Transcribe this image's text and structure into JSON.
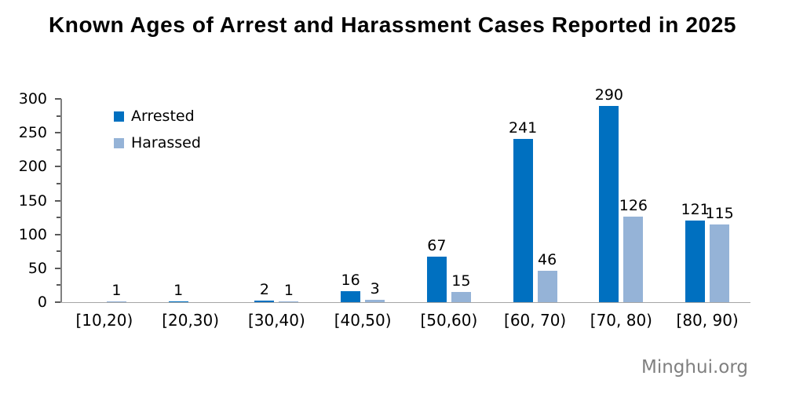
{
  "title": "Known Ages of Arrest and Harassment Cases Reported in 2025",
  "watermark": "Minghui.org",
  "colors": {
    "arrested": "#0070C0",
    "harassed": "#95B3D7",
    "axis_line": "#808080",
    "baseline": "#A6A6A6",
    "tick": "#595959",
    "text": "#000000",
    "watermark": "#808080"
  },
  "legend": [
    {
      "label": "Arrested",
      "color_key": "arrested"
    },
    {
      "label": "Harassed",
      "color_key": "harassed"
    }
  ],
  "chart_data": {
    "type": "bar",
    "title": "Known Ages of Arrest and Harassment Cases Reported in 2025",
    "categories": [
      "[10,20)",
      "[20,30)",
      "[30,40)",
      "[40,50)",
      "[50,60)",
      "[60, 70)",
      "[70, 80)",
      "[80, 90)"
    ],
    "series": [
      {
        "name": "Arrested",
        "color_key": "arrested",
        "values": [
          null,
          1,
          2,
          16,
          67,
          241,
          290,
          121
        ]
      },
      {
        "name": "Harassed",
        "color_key": "harassed",
        "values": [
          1,
          null,
          1,
          3,
          15,
          46,
          126,
          115
        ]
      }
    ],
    "xlabel": "",
    "ylabel": "",
    "ylim": [
      0,
      300
    ],
    "ytick_major": 50,
    "ytick_minor": 25,
    "grid": false,
    "data_labels": true,
    "legend_position": "top-left-inside"
  }
}
